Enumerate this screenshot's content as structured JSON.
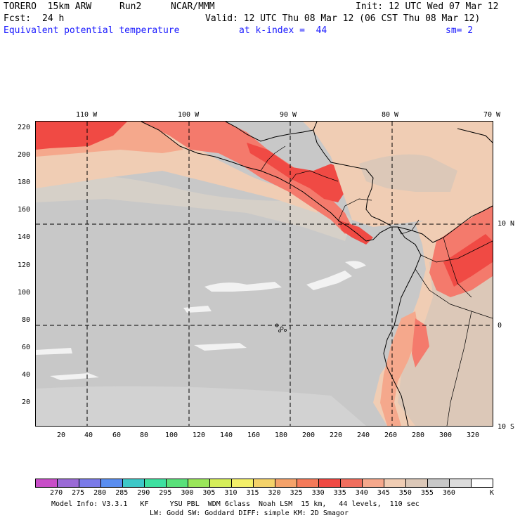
{
  "header": {
    "model": "TORERO  15km ARW",
    "run": "Run2",
    "org": "NCAR/MMM",
    "init": "Init: 12 UTC Wed 07 Mar 12",
    "fcst_label": "Fcst:",
    "fcst_value": "24 h",
    "valid": "Valid: 12 UTC Thu 08 Mar 12 (06 CST Thu 08 Mar 12)",
    "field": "Equivalent potential temperature",
    "level": "at k-index =  44",
    "smooth": "sm= 2"
  },
  "map": {
    "top_lon_labels": [
      "110 W",
      "100 W",
      "90 W",
      "80 W",
      "70 W"
    ],
    "right_lat_labels": [
      "10 N",
      "0",
      "10 S"
    ],
    "y_ticks": [
      "220",
      "200",
      "180",
      "160",
      "140",
      "120",
      "100",
      "80",
      "60",
      "40",
      "20"
    ],
    "x_ticks": [
      "20",
      "40",
      "60",
      "80",
      "100",
      "120",
      "140",
      "160",
      "180",
      "200",
      "220",
      "240",
      "260",
      "280",
      "300",
      "320"
    ],
    "colors": {
      "background": "#c8c8c8",
      "light_gray": "#dcdcdc",
      "white_patch": "#f2f2f2",
      "peach_light": "#f0cdb4",
      "peach": "#f5a88c",
      "salmon": "#f47a6c",
      "red": "#f04a44",
      "coast": "#000000",
      "grid": "#000000"
    }
  },
  "colorbar": {
    "colors": [
      "#c84ec8",
      "#9a6ad6",
      "#7a7ae8",
      "#5a8ef0",
      "#3ec8c8",
      "#3ee0a0",
      "#5ae07a",
      "#9ae65a",
      "#d6ee5a",
      "#f4f06a",
      "#f4d26a",
      "#f4a26a",
      "#f47a5a",
      "#f04a44",
      "#f06e5e",
      "#f5a88c",
      "#f0cdb4",
      "#dcc8b8",
      "#c8c8c8",
      "#dcdcdc",
      "#ffffff"
    ],
    "labels": [
      "270",
      "275",
      "280",
      "285",
      "290",
      "295",
      "300",
      "305",
      "310",
      "315",
      "320",
      "325",
      "330",
      "335",
      "340",
      "345",
      "350",
      "355",
      "360"
    ],
    "unit": "K"
  },
  "footer": {
    "line1": "Model Info: V3.3.1   KF     YSU PBL  WDM 6class  Noah LSM  15 km,   44 levels,  110 sec",
    "line2": "LW: Godd SW: Goddard DIFF: simple KM: 2D Smagor"
  }
}
